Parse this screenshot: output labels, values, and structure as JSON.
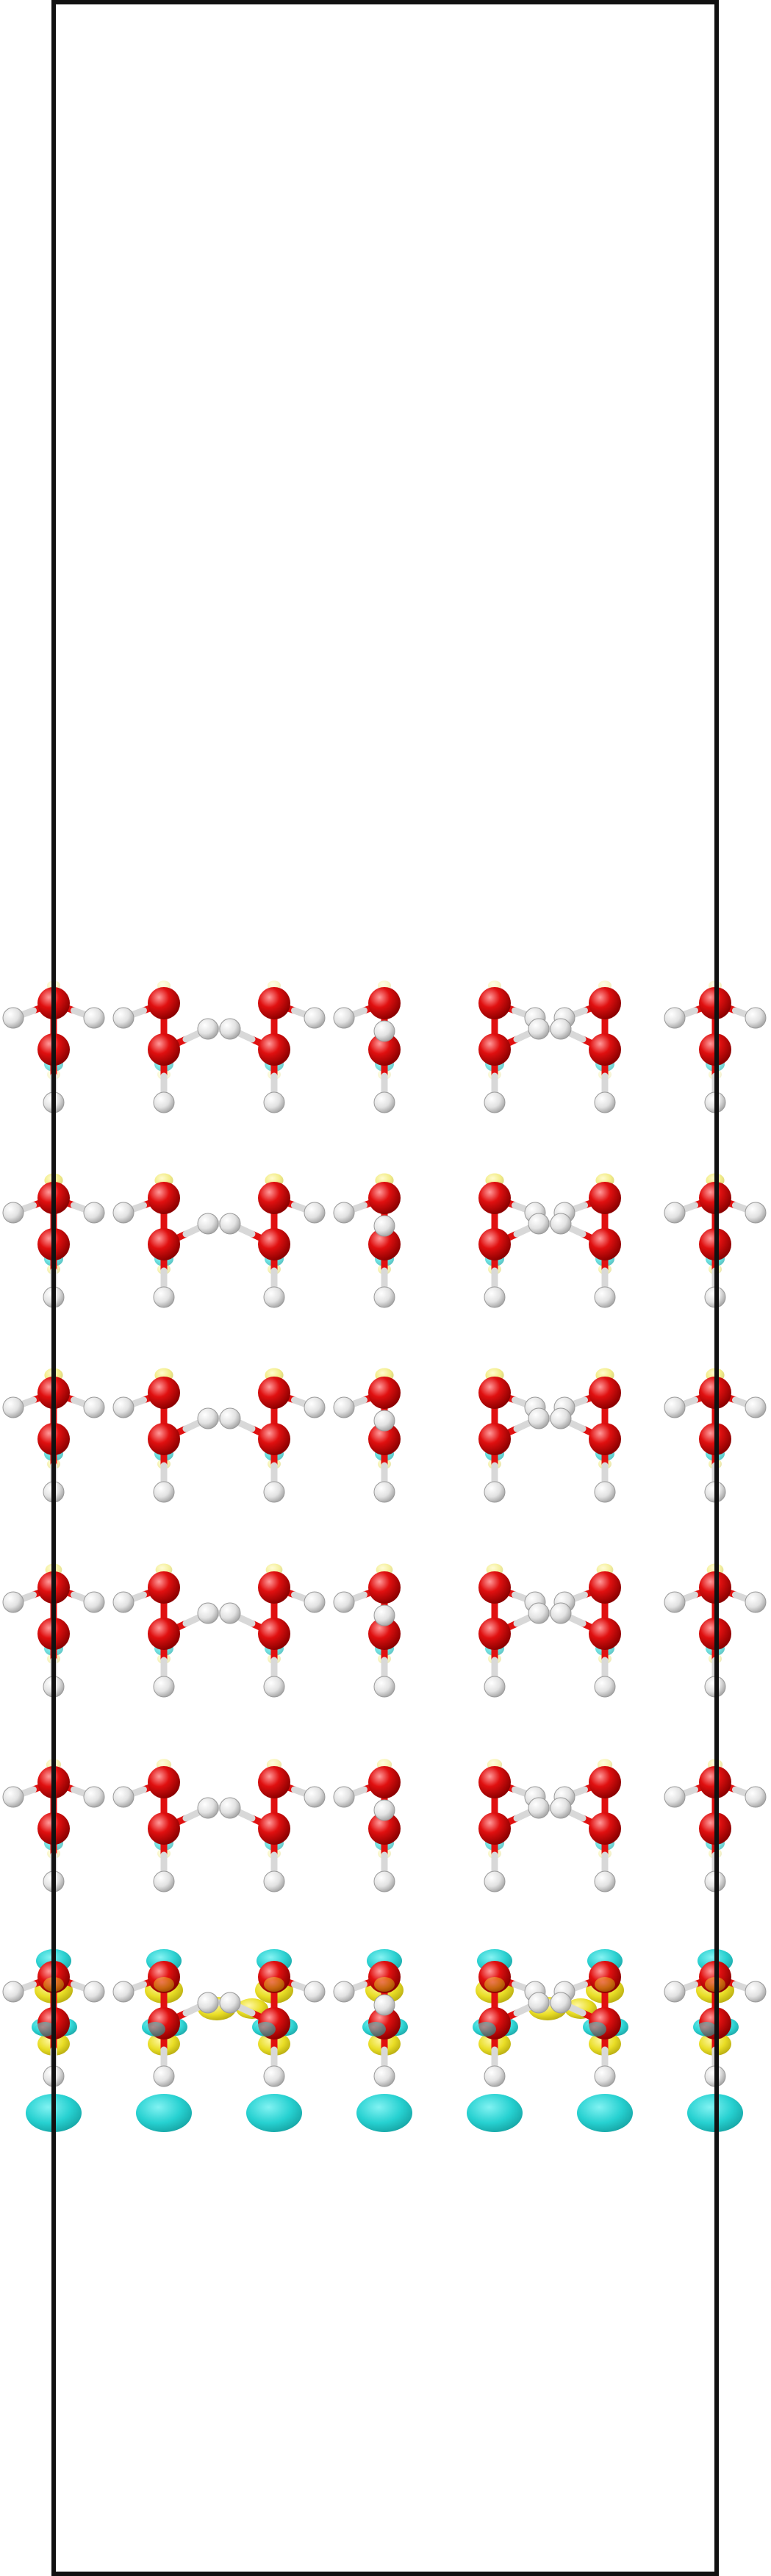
{
  "colors": {
    "background": "#ffffff",
    "cell_border": "#111111",
    "oxygen": "#e01010",
    "oxygen_highlight": "#ff8a8a",
    "hydrogen": "#e6e6e6",
    "hydrogen_highlight": "#ffffff",
    "hydrogen_outline": "#9a9a9a",
    "density_positive": "#e8dc1a",
    "density_negative": "#22d0d0"
  },
  "structure": {
    "layer_count": 6,
    "sites_per_layer": 7,
    "density_strength_by_layer": [
      0.15,
      0.45,
      0.45,
      0.35,
      0.25,
      1.0
    ]
  }
}
